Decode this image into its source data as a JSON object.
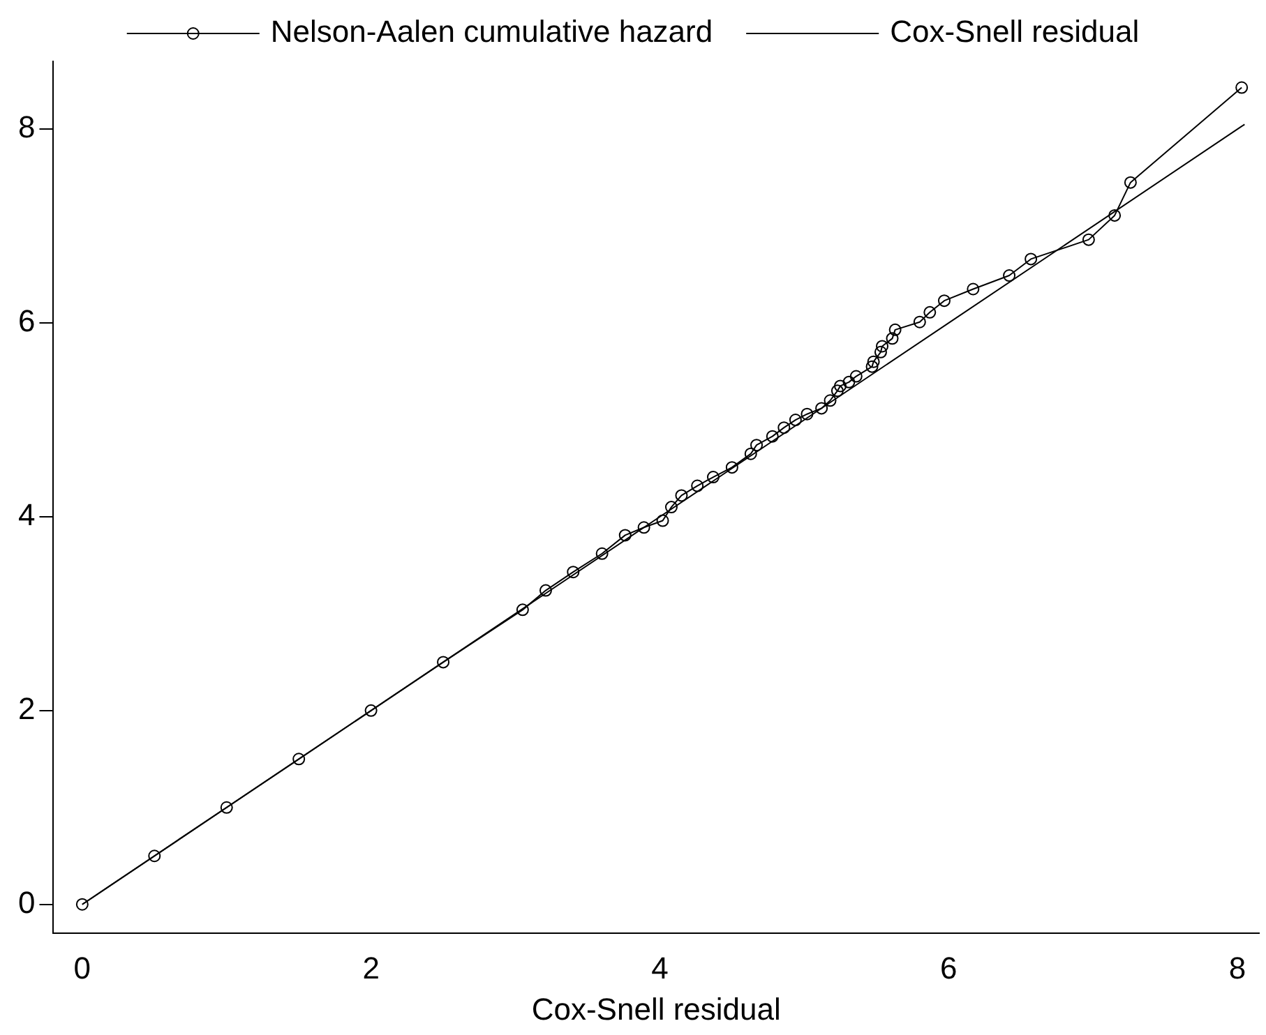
{
  "chart_data": {
    "type": "line",
    "xlabel": "Cox-Snell residual",
    "xlim": [
      -0.2,
      8.15
    ],
    "ylim": [
      -0.3,
      8.7
    ],
    "xticks": [
      0,
      2,
      4,
      6,
      8
    ],
    "yticks": [
      0,
      2,
      4,
      6,
      8
    ],
    "grid": false,
    "legend": "top",
    "series": [
      {
        "name": "Nelson-Aalen cumulative hazard",
        "color": "#000000",
        "marker": "circle",
        "x": [
          0,
          0.5,
          1,
          1.5,
          2,
          2.5,
          3.05,
          3.21,
          3.4,
          3.6,
          3.76,
          3.89,
          4.02,
          4.08,
          4.15,
          4.26,
          4.37,
          4.5,
          4.63,
          4.67,
          4.78,
          4.86,
          4.94,
          5.02,
          5.12,
          5.18,
          5.23,
          5.25,
          5.31,
          5.36,
          5.47,
          5.48,
          5.53,
          5.54,
          5.61,
          5.63,
          5.8,
          5.87,
          5.97,
          6.17,
          6.42,
          6.57,
          6.97,
          7.15,
          7.26,
          8.03
        ],
        "values": [
          0,
          0.5,
          1,
          1.5,
          2,
          2.5,
          3.04,
          3.24,
          3.43,
          3.62,
          3.81,
          3.89,
          3.96,
          4.1,
          4.22,
          4.32,
          4.41,
          4.51,
          4.65,
          4.74,
          4.83,
          4.92,
          5,
          5.06,
          5.12,
          5.2,
          5.3,
          5.35,
          5.39,
          5.45,
          5.55,
          5.6,
          5.7,
          5.76,
          5.84,
          5.93,
          6.01,
          6.11,
          6.23,
          6.35,
          6.49,
          6.66,
          6.86,
          7.11,
          7.45,
          8.43
        ]
      },
      {
        "name": "Cox-Snell residual",
        "color": "#000000",
        "marker": "none",
        "x": [
          0,
          2,
          4,
          6,
          8.05
        ],
        "values": [
          0,
          2,
          4,
          6,
          8.05
        ]
      }
    ]
  }
}
